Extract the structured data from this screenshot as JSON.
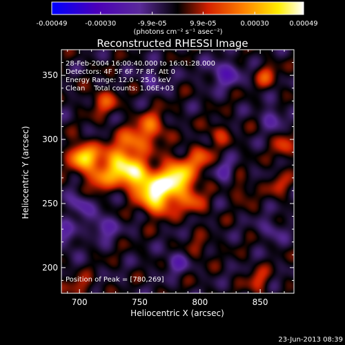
{
  "colorbar": {
    "tick_labels": [
      "-0.00049",
      "-0.00030",
      "-9.9e-05",
      "9.9e-05",
      "0.00030",
      "0.00049"
    ],
    "tick_values": [
      -0.00049,
      -0.0003,
      -9.9e-05,
      9.9e-05,
      0.0003,
      0.00049
    ],
    "range": [
      -0.00049,
      0.00049
    ],
    "unit_label": "(photons cm⁻² s⁻¹ asec⁻²)",
    "colors": [
      "#0000ff",
      "#4b00b8",
      "#5a2a9a",
      "#000000",
      "#d42000",
      "#ff8000",
      "#ffee00",
      "#ffffff"
    ]
  },
  "chart_data": {
    "type": "heatmap",
    "title": "Reconstructed RHESSI Image",
    "xlabel": "Heliocentric X (arcsec)",
    "ylabel": "Heliocentric Y (arcsec)",
    "xlim": [
      685,
      878
    ],
    "ylim": [
      180,
      370
    ],
    "x_ticks": [
      700,
      750,
      800,
      850
    ],
    "y_ticks": [
      200,
      250,
      300,
      350
    ],
    "info_lines": [
      "28-Feb-2004 16:00:40.000 to 16:01:28.000",
      "Detectors: 4F 5F 6F 7F 8F, Att 0",
      "Energy Range: 12.0 - 25.0 keV",
      "Clean    Total counts: 1.06E+03"
    ],
    "peak_label": "Position of Peak = [780,269]",
    "peak_position": [
      780,
      269
    ],
    "sources": [
      {
        "x": 780,
        "y": 269,
        "amp": 1.0,
        "sx": 10,
        "sy": 10
      },
      {
        "x": 760,
        "y": 262,
        "amp": 0.75,
        "sx": 9,
        "sy": 8
      },
      {
        "x": 745,
        "y": 273,
        "amp": 0.8,
        "sx": 9,
        "sy": 8
      },
      {
        "x": 765,
        "y": 250,
        "amp": 0.55,
        "sx": 9,
        "sy": 7
      },
      {
        "x": 730,
        "y": 282,
        "amp": 0.7,
        "sx": 9,
        "sy": 9
      },
      {
        "x": 703,
        "y": 287,
        "amp": 0.85,
        "sx": 8,
        "sy": 7
      },
      {
        "x": 715,
        "y": 270,
        "amp": 0.45,
        "sx": 8,
        "sy": 7
      },
      {
        "x": 745,
        "y": 298,
        "amp": 0.5,
        "sx": 9,
        "sy": 8
      },
      {
        "x": 760,
        "y": 310,
        "amp": 0.45,
        "sx": 8,
        "sy": 8
      },
      {
        "x": 800,
        "y": 285,
        "amp": 0.4,
        "sx": 7,
        "sy": 7
      },
      {
        "x": 795,
        "y": 250,
        "amp": 0.3,
        "sx": 8,
        "sy": 7
      },
      {
        "x": 720,
        "y": 330,
        "amp": 0.35,
        "sx": 8,
        "sy": 7
      },
      {
        "x": 815,
        "y": 305,
        "amp": 0.3,
        "sx": 6,
        "sy": 6
      },
      {
        "x": 855,
        "y": 350,
        "amp": 0.35,
        "sx": 6,
        "sy": 6
      },
      {
        "x": 870,
        "y": 295,
        "amp": 0.3,
        "sx": 6,
        "sy": 8
      },
      {
        "x": 865,
        "y": 265,
        "amp": 0.28,
        "sx": 6,
        "sy": 6
      },
      {
        "x": 848,
        "y": 190,
        "amp": 0.3,
        "sx": 6,
        "sy": 7
      },
      {
        "x": 700,
        "y": 185,
        "amp": 0.25,
        "sx": 8,
        "sy": 6
      },
      {
        "x": 835,
        "y": 260,
        "amp": 0.25,
        "sx": 6,
        "sy": 6
      },
      {
        "x": 800,
        "y": 215,
        "amp": 0.2,
        "sx": 7,
        "sy": 6
      },
      {
        "x": 700,
        "y": 250,
        "amp": -0.35,
        "sx": 7,
        "sy": 6
      },
      {
        "x": 720,
        "y": 232,
        "amp": -0.4,
        "sx": 7,
        "sy": 6
      },
      {
        "x": 690,
        "y": 225,
        "amp": -0.3,
        "sx": 6,
        "sy": 8
      },
      {
        "x": 820,
        "y": 352,
        "amp": -0.4,
        "sx": 9,
        "sy": 7
      },
      {
        "x": 860,
        "y": 317,
        "amp": -0.35,
        "sx": 6,
        "sy": 6
      },
      {
        "x": 820,
        "y": 275,
        "amp": -0.3,
        "sx": 6,
        "sy": 6
      },
      {
        "x": 780,
        "y": 205,
        "amp": -0.3,
        "sx": 7,
        "sy": 6
      },
      {
        "x": 760,
        "y": 348,
        "amp": -0.25,
        "sx": 7,
        "sy": 6
      },
      {
        "x": 860,
        "y": 230,
        "amp": -0.25,
        "sx": 7,
        "sy": 6
      }
    ],
    "ripple_amplitude": 0.12
  },
  "footer": {
    "timestamp": "23-Jun-2013 08:39"
  }
}
